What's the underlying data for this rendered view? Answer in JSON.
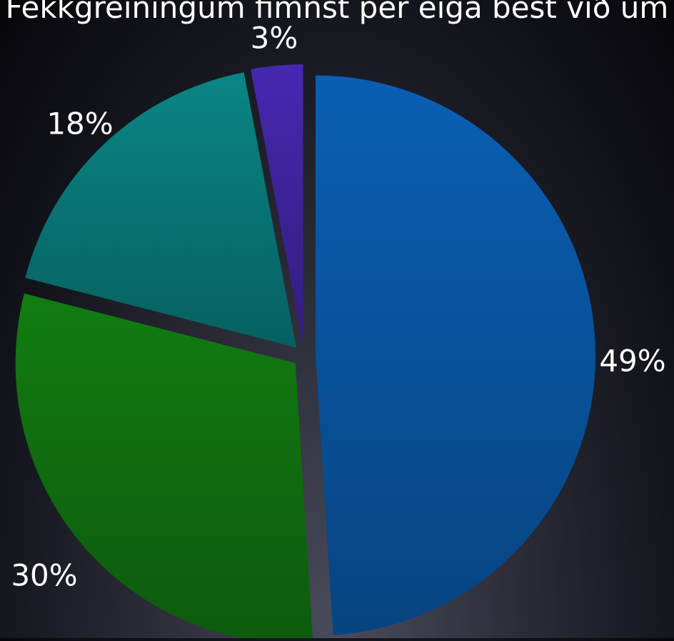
{
  "chart_data": {
    "type": "pie",
    "title": "Fékkgreiningum fimnst per eiga best við um",
    "slices": [
      {
        "value": 49,
        "label": "49%",
        "color": "#0a5fb3"
      },
      {
        "value": 30,
        "label": "30%",
        "color": "#127d12"
      },
      {
        "value": 18,
        "label": "18%",
        "color": "#0a8585"
      },
      {
        "value": 3,
        "label": "3%",
        "color": "#4628b0"
      }
    ],
    "exploded": true,
    "legend": "none"
  }
}
